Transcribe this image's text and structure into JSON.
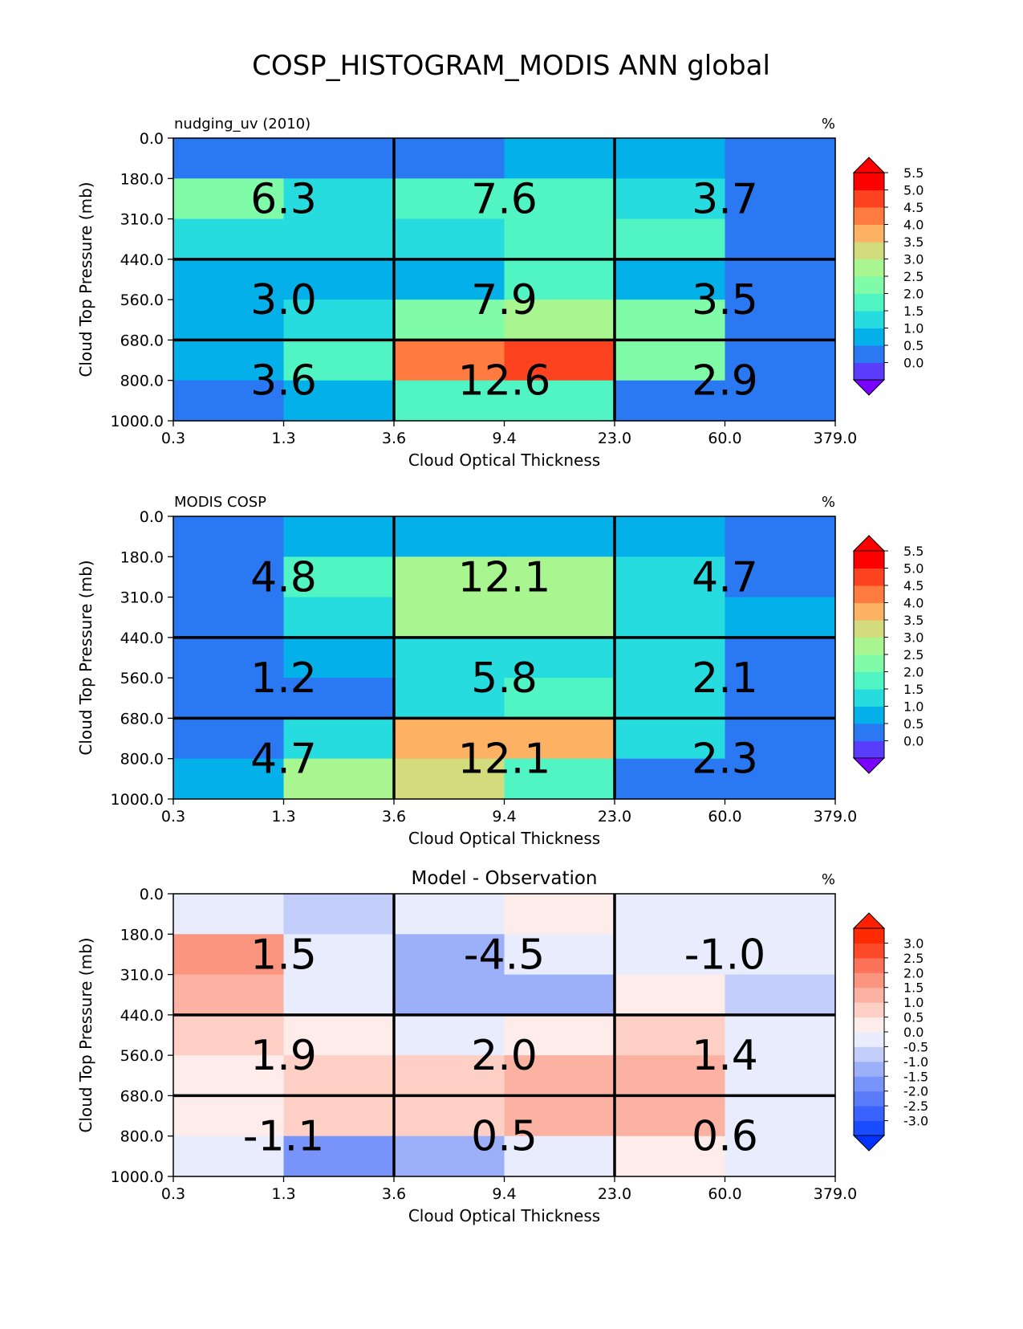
{
  "suptitle": "COSP_HISTOGRAM_MODIS ANN global",
  "chart_data": [
    {
      "type": "heatmap",
      "title": "",
      "left_title": "nudging_uv (2010)",
      "unit": "%",
      "xlabel": "Cloud Optical Thickness",
      "ylabel": "Cloud Top Pressure (mb)",
      "x_ticks": [
        "0.3",
        "1.3",
        "3.6",
        "9.4",
        "23.0",
        "60.0",
        "379.0"
      ],
      "y_ticks": [
        "0.0",
        "180.0",
        "310.0",
        "440.0",
        "560.0",
        "680.0",
        "800.0",
        "1000.0"
      ],
      "grid_values": [
        [
          0.2,
          0.2,
          0.2,
          0.7,
          0.7,
          0.2
        ],
        [
          2.2,
          1.3,
          1.8,
          1.8,
          1.3,
          0.2
        ],
        [
          1.3,
          1.3,
          1.3,
          1.8,
          1.8,
          0.2
        ],
        [
          0.7,
          0.7,
          0.7,
          1.8,
          0.7,
          0.2
        ],
        [
          0.7,
          1.3,
          2.2,
          2.7,
          2.2,
          0.2
        ],
        [
          0.7,
          1.8,
          4.2,
          4.7,
          2.2,
          0.2
        ],
        [
          0.2,
          0.7,
          1.8,
          1.8,
          0.2,
          0.2
        ]
      ],
      "region_values": [
        [
          "6.3",
          "7.6",
          "3.7"
        ],
        [
          "3.0",
          "7.9",
          "3.5"
        ],
        [
          "3.6",
          "12.6",
          "2.9"
        ]
      ],
      "colorbar": {
        "ticks": [
          "0.0",
          "0.5",
          "1.0",
          "1.5",
          "2.0",
          "2.5",
          "3.0",
          "3.5",
          "4.0",
          "4.5",
          "5.0",
          "5.5"
        ],
        "colors": [
          "#5a3cfc",
          "#2a78f2",
          "#04b0ea",
          "#27dcde",
          "#50f5c3",
          "#80fca9",
          "#a9f58f",
          "#d2dc7c",
          "#fdb163",
          "#ff7b3f",
          "#fd4220",
          "#ff0000"
        ],
        "under_color": "#7a00ff",
        "over_color": "#ff0000"
      }
    },
    {
      "type": "heatmap",
      "title": "",
      "left_title": "MODIS COSP",
      "unit": "%",
      "xlabel": "Cloud Optical Thickness",
      "ylabel": "Cloud Top Pressure (mb)",
      "x_ticks": [
        "0.3",
        "1.3",
        "3.6",
        "9.4",
        "23.0",
        "60.0",
        "379.0"
      ],
      "y_ticks": [
        "0.0",
        "180.0",
        "310.0",
        "440.0",
        "560.0",
        "680.0",
        "800.0",
        "1000.0"
      ],
      "grid_values": [
        [
          0.2,
          0.7,
          0.7,
          0.7,
          0.7,
          0.2
        ],
        [
          0.2,
          1.8,
          2.7,
          2.7,
          1.3,
          0.2
        ],
        [
          0.2,
          1.3,
          2.7,
          2.7,
          1.3,
          0.7
        ],
        [
          0.2,
          0.7,
          1.3,
          1.3,
          1.3,
          0.2
        ],
        [
          0.2,
          0.2,
          1.3,
          1.8,
          1.3,
          0.2
        ],
        [
          0.2,
          1.3,
          3.7,
          3.7,
          1.3,
          0.2
        ],
        [
          0.7,
          2.7,
          3.2,
          1.8,
          0.2,
          0.2
        ]
      ],
      "region_values": [
        [
          "4.8",
          "12.1",
          "4.7"
        ],
        [
          "1.2",
          "5.8",
          "2.1"
        ],
        [
          "4.7",
          "12.1",
          "2.3"
        ]
      ],
      "colorbar": {
        "ticks": [
          "0.0",
          "0.5",
          "1.0",
          "1.5",
          "2.0",
          "2.5",
          "3.0",
          "3.5",
          "4.0",
          "4.5",
          "5.0",
          "5.5"
        ],
        "colors": [
          "#5a3cfc",
          "#2a78f2",
          "#04b0ea",
          "#27dcde",
          "#50f5c3",
          "#80fca9",
          "#a9f58f",
          "#d2dc7c",
          "#fdb163",
          "#ff7b3f",
          "#fd4220",
          "#ff0000"
        ],
        "under_color": "#7a00ff",
        "over_color": "#ff0000"
      }
    },
    {
      "type": "heatmap",
      "title": "Model - Observation",
      "left_title": "",
      "unit": "%",
      "xlabel": "Cloud Optical Thickness",
      "ylabel": "Cloud Top Pressure (mb)",
      "x_ticks": [
        "0.3",
        "1.3",
        "3.6",
        "9.4",
        "23.0",
        "60.0",
        "379.0"
      ],
      "y_ticks": [
        "0.0",
        "180.0",
        "310.0",
        "440.0",
        "560.0",
        "680.0",
        "800.0",
        "1000.0"
      ],
      "grid_values": [
        [
          -0.2,
          -0.7,
          -0.2,
          0.2,
          -0.2,
          -0.2
        ],
        [
          1.7,
          -0.2,
          -1.2,
          -0.2,
          -0.2,
          -0.2
        ],
        [
          1.2,
          -0.2,
          -1.2,
          -1.2,
          0.2,
          -0.7
        ],
        [
          0.7,
          0.2,
          -0.2,
          0.2,
          0.7,
          -0.2
        ],
        [
          0.2,
          0.7,
          0.7,
          1.2,
          1.2,
          -0.2
        ],
        [
          0.2,
          0.7,
          0.7,
          1.2,
          1.2,
          -0.2
        ],
        [
          -0.2,
          -1.7,
          -1.2,
          -0.2,
          0.2,
          -0.2
        ]
      ],
      "region_values": [
        [
          "1.5",
          "-4.5",
          "-1.0"
        ],
        [
          "1.9",
          "2.0",
          "1.4"
        ],
        [
          "-1.1",
          "0.5",
          "0.6"
        ]
      ],
      "colorbar": {
        "ticks": [
          "-3.0",
          "-2.5",
          "-2.0",
          "-1.5",
          "-1.0",
          "-0.5",
          "0.0",
          "0.5",
          "1.0",
          "1.5",
          "2.0",
          "2.5",
          "3.0"
        ],
        "colors": [
          "#1a4cff",
          "#3a62ff",
          "#5a7cfb",
          "#7893fa",
          "#9cb0f9",
          "#c2cdfa",
          "#e8ecfc",
          "#fdecea",
          "#fdcfc5",
          "#fcb2a2",
          "#fc9580",
          "#fd735a",
          "#ff4a2a",
          "#ff2a00"
        ],
        "under_color": "#0033ff",
        "over_color": "#ff2000"
      }
    }
  ]
}
